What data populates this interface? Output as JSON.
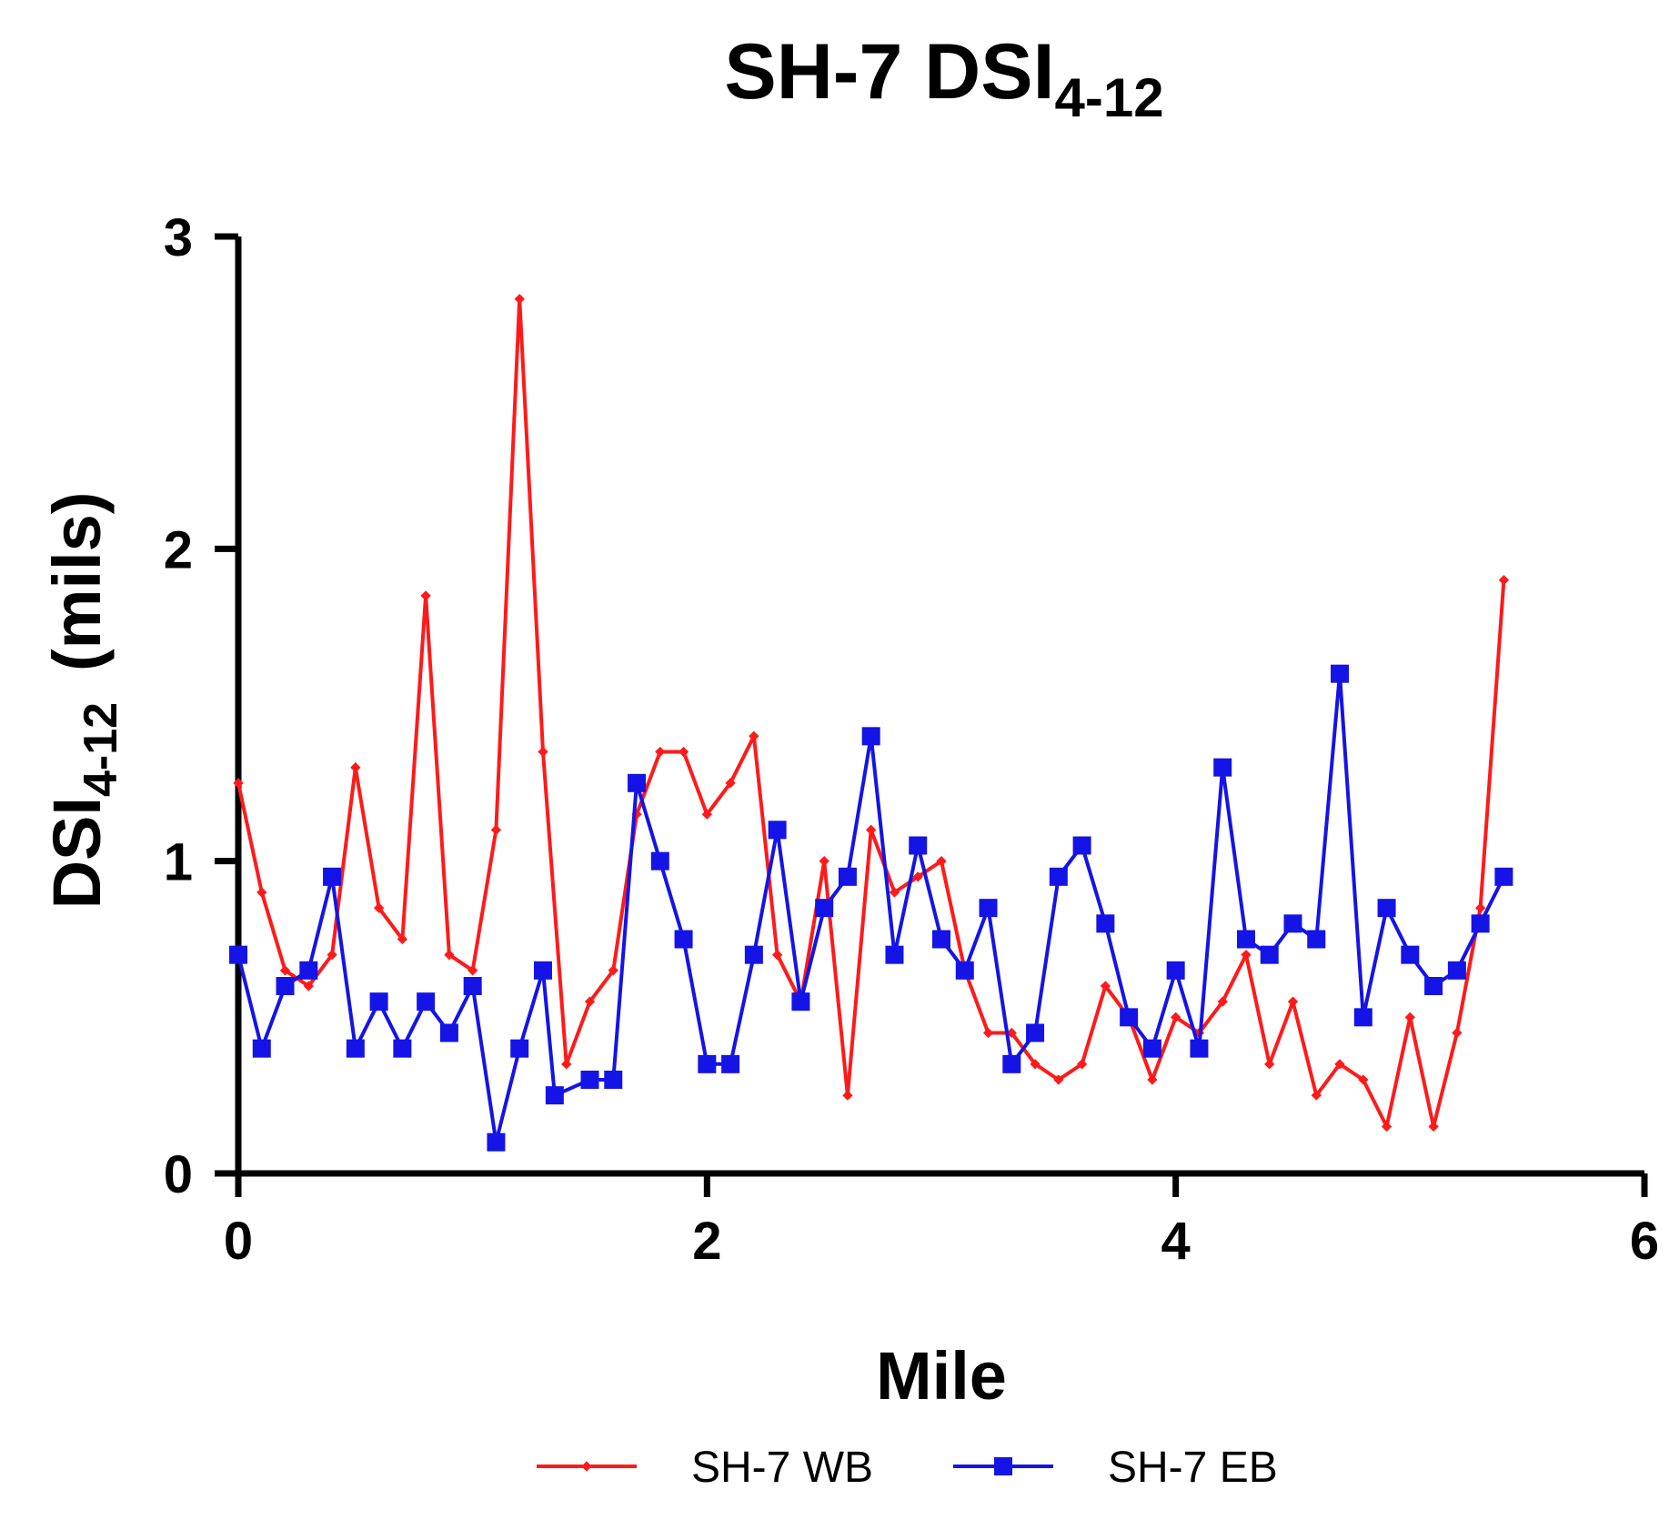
{
  "chart_data": {
    "type": "line",
    "title": {
      "main": "SH-7 DSI",
      "sub": "4-12"
    },
    "xlabel": "Mile",
    "ylabel": {
      "main": "DSI",
      "sub": "4-12",
      "unit": "(mils)"
    },
    "xlim": [
      0,
      6
    ],
    "ylim": [
      0,
      3
    ],
    "xticks": [
      0,
      2,
      4,
      6
    ],
    "yticks": [
      0,
      1,
      2,
      3
    ],
    "grid": false,
    "legend_position": "bottom",
    "series": [
      {
        "name": "SH-7 WB",
        "color": "#ff1a1a",
        "marker": "diamond",
        "x": [
          0,
          0.1,
          0.2,
          0.3,
          0.4,
          0.5,
          0.6,
          0.7,
          0.8,
          0.9,
          1.0,
          1.1,
          1.2,
          1.3,
          1.4,
          1.5,
          1.6,
          1.7,
          1.8,
          1.9,
          2.0,
          2.1,
          2.2,
          2.3,
          2.4,
          2.5,
          2.6,
          2.7,
          2.8,
          2.9,
          3.0,
          3.1,
          3.2,
          3.3,
          3.4,
          3.5,
          3.6,
          3.7,
          3.8,
          3.9,
          4.0,
          4.1,
          4.2,
          4.3,
          4.4,
          4.5,
          4.6,
          4.7,
          4.8,
          4.9,
          5.0,
          5.1,
          5.2,
          5.3,
          5.4
        ],
        "y": [
          1.25,
          0.9,
          0.65,
          0.6,
          0.7,
          1.3,
          0.85,
          0.75,
          1.85,
          0.7,
          0.65,
          1.1,
          2.8,
          1.35,
          0.35,
          0.55,
          0.65,
          1.15,
          1.35,
          1.35,
          1.15,
          1.25,
          1.4,
          0.7,
          0.55,
          1.0,
          0.25,
          1.1,
          0.9,
          0.95,
          1.0,
          0.65,
          0.45,
          0.45,
          0.35,
          0.3,
          0.35,
          0.6,
          0.5,
          0.3,
          0.5,
          0.45,
          0.55,
          0.7,
          0.35,
          0.55,
          0.25,
          0.35,
          0.3,
          0.15,
          0.5,
          0.15,
          0.45,
          0.85,
          1.9
        ]
      },
      {
        "name": "SH-7 EB",
        "color": "#1414e6",
        "marker": "square",
        "x": [
          0,
          0.1,
          0.2,
          0.3,
          0.4,
          0.5,
          0.6,
          0.7,
          0.8,
          0.9,
          1.0,
          1.1,
          1.2,
          1.3,
          1.35,
          1.5,
          1.6,
          1.7,
          1.8,
          1.9,
          2.0,
          2.1,
          2.2,
          2.3,
          2.4,
          2.5,
          2.6,
          2.7,
          2.8,
          2.9,
          3.0,
          3.1,
          3.2,
          3.3,
          3.4,
          3.5,
          3.6,
          3.7,
          3.8,
          3.9,
          4.0,
          4.1,
          4.2,
          4.3,
          4.4,
          4.5,
          4.6,
          4.7,
          4.8,
          4.9,
          5.0,
          5.1,
          5.2,
          5.3,
          5.4
        ],
        "y": [
          0.7,
          0.4,
          0.6,
          0.65,
          0.95,
          0.4,
          0.55,
          0.4,
          0.55,
          0.45,
          0.6,
          0.1,
          0.4,
          0.65,
          0.25,
          0.3,
          0.3,
          1.25,
          1.0,
          0.75,
          0.35,
          0.35,
          0.7,
          1.1,
          0.55,
          0.85,
          0.95,
          1.4,
          0.7,
          1.05,
          0.75,
          0.65,
          0.85,
          0.35,
          0.45,
          0.95,
          1.05,
          0.8,
          0.5,
          0.4,
          0.65,
          0.4,
          1.3,
          0.75,
          0.7,
          0.8,
          0.75,
          1.6,
          0.5,
          0.85,
          0.7,
          0.6,
          0.65,
          0.8,
          0.95
        ]
      }
    ]
  }
}
